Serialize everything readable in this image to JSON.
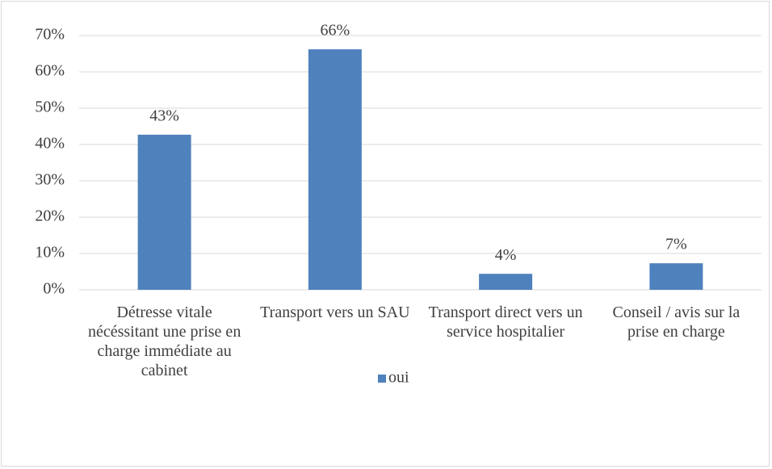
{
  "chart_data": {
    "type": "bar",
    "categories": [
      "Détresse vitale nécéssitant une prise en charge immédiate au cabinet",
      "Transport vers un SAU",
      "Transport direct vers un service hospitalier",
      "Conseil / avis sur la prise en charge"
    ],
    "series": [
      {
        "name": "oui",
        "color": "#4f81bd",
        "values": [
          42.7,
          66.2,
          4.4,
          7.3
        ],
        "value_labels": [
          "43%",
          "66%",
          "4%",
          "7%"
        ]
      }
    ],
    "ylim": [
      0,
      70
    ],
    "yticks": [
      {
        "value": 0,
        "label": "0%"
      },
      {
        "value": 10,
        "label": "10%"
      },
      {
        "value": 20,
        "label": "20%"
      },
      {
        "value": 30,
        "label": "30%"
      },
      {
        "value": 40,
        "label": "40%"
      },
      {
        "value": 50,
        "label": "50%"
      },
      {
        "value": 60,
        "label": "60%"
      },
      {
        "value": 70,
        "label": "70%"
      }
    ],
    "grid": true,
    "legend": "bottom"
  }
}
